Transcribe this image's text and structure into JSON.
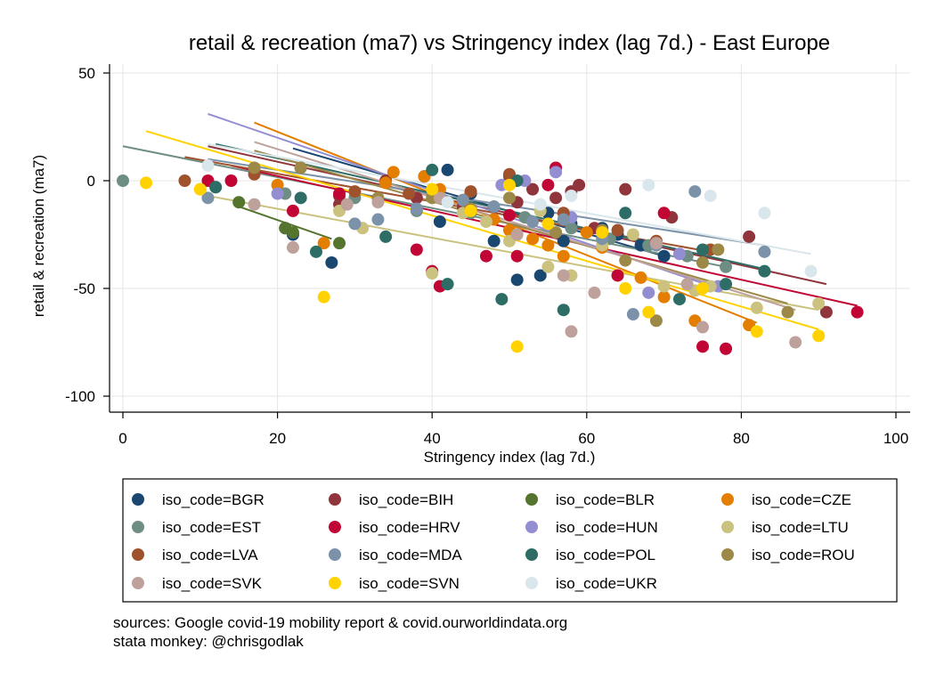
{
  "chart_data": {
    "type": "scatter",
    "title": "retail & recreation (ma7) vs Stringency index (lag 7d.) - East Europe",
    "xlabel": "Stringency index (lag 7d.)",
    "ylabel": "retail & recreation (ma7)",
    "xlim": [
      0,
      100
    ],
    "ylim": [
      -100,
      50
    ],
    "xticks": [
      "0",
      "20",
      "40",
      "60",
      "80",
      "100"
    ],
    "yticks": [
      "50",
      "0",
      "-50",
      "-100"
    ],
    "grid": true,
    "legend_position": "bottom",
    "series": [
      {
        "name": "iso_code=BGR",
        "color": "#1a476f",
        "points": [
          [
            21,
            -22
          ],
          [
            22,
            -25
          ],
          [
            27,
            -38
          ],
          [
            39,
            2
          ],
          [
            41,
            -19
          ],
          [
            42,
            5
          ],
          [
            45,
            -6
          ],
          [
            48,
            -28
          ],
          [
            51,
            -46
          ],
          [
            54,
            -44
          ],
          [
            55,
            -15
          ],
          [
            57,
            -28
          ],
          [
            58,
            -20
          ],
          [
            62,
            -22
          ],
          [
            64,
            -25
          ],
          [
            67,
            -30
          ],
          [
            70,
            -35
          ]
        ],
        "fit": [
          [
            22,
            15
          ],
          [
            70,
            -35
          ]
        ]
      },
      {
        "name": "iso_code=BIH",
        "color": "#90353b",
        "points": [
          [
            28,
            -7
          ],
          [
            28,
            -11
          ],
          [
            34,
            0
          ],
          [
            38,
            -8
          ],
          [
            44,
            -12
          ],
          [
            50,
            2
          ],
          [
            51,
            -10
          ],
          [
            53,
            -4
          ],
          [
            56,
            -8
          ],
          [
            58,
            -5
          ],
          [
            59,
            -2
          ],
          [
            61,
            -22
          ],
          [
            65,
            -4
          ],
          [
            71,
            -17
          ],
          [
            81,
            -26
          ],
          [
            91,
            -61
          ]
        ],
        "fit": [
          [
            11,
            16
          ],
          [
            91,
            -48
          ]
        ]
      },
      {
        "name": "iso_code=BLR",
        "color": "#55752f",
        "points": [
          [
            15,
            -10
          ],
          [
            21,
            -22
          ],
          [
            22,
            -24
          ],
          [
            28,
            -29
          ]
        ],
        "fit": [
          [
            15,
            -12
          ],
          [
            27,
            -27
          ]
        ]
      },
      {
        "name": "iso_code=CZE",
        "color": "#e37e00",
        "points": [
          [
            20,
            -2
          ],
          [
            26,
            -29
          ],
          [
            34,
            -1
          ],
          [
            35,
            4
          ],
          [
            39,
            2
          ],
          [
            41,
            -4
          ],
          [
            44,
            -9
          ],
          [
            48,
            -18
          ],
          [
            50,
            -23
          ],
          [
            53,
            -27
          ],
          [
            55,
            -30
          ],
          [
            57,
            -35
          ],
          [
            60,
            -24
          ],
          [
            62,
            -31
          ],
          [
            67,
            -45
          ],
          [
            70,
            -54
          ],
          [
            74,
            -65
          ],
          [
            81,
            -67
          ]
        ],
        "fit": [
          [
            17,
            27
          ],
          [
            82,
            -66
          ]
        ]
      },
      {
        "name": "iso_code=EST",
        "color": "#6e8e84",
        "points": [
          [
            0,
            0
          ],
          [
            12,
            -3
          ],
          [
            21,
            -6
          ],
          [
            30,
            -8
          ],
          [
            38,
            -14
          ],
          [
            45,
            -15
          ],
          [
            52,
            -17
          ],
          [
            58,
            -22
          ],
          [
            63,
            -27
          ],
          [
            68,
            -30
          ],
          [
            73,
            -35
          ],
          [
            78,
            -40
          ]
        ],
        "fit": [
          [
            0,
            16
          ],
          [
            78,
            -40
          ]
        ]
      },
      {
        "name": "iso_code=HRV",
        "color": "#c10534",
        "points": [
          [
            11,
            0
          ],
          [
            14,
            0
          ],
          [
            22,
            -14
          ],
          [
            28,
            -6
          ],
          [
            38,
            -32
          ],
          [
            40,
            -42
          ],
          [
            41,
            -49
          ],
          [
            47,
            -35
          ],
          [
            50,
            -16
          ],
          [
            51,
            -35
          ],
          [
            55,
            -2
          ],
          [
            56,
            6
          ],
          [
            64,
            -44
          ],
          [
            70,
            -15
          ],
          [
            75,
            -77
          ],
          [
            78,
            -78
          ],
          [
            95,
            -61
          ]
        ],
        "fit": [
          [
            14,
            7
          ],
          [
            95,
            -58
          ]
        ]
      },
      {
        "name": "iso_code=HUN",
        "color": "#938dd2",
        "points": [
          [
            20,
            -6
          ],
          [
            49,
            -2
          ],
          [
            52,
            0
          ],
          [
            56,
            4
          ],
          [
            58,
            -17
          ],
          [
            68,
            -52
          ],
          [
            72,
            -34
          ],
          [
            77,
            -49
          ]
        ],
        "fit": [
          [
            11,
            31
          ],
          [
            77,
            -50
          ]
        ]
      },
      {
        "name": "iso_code=LTU",
        "color": "#cac27e",
        "points": [
          [
            10,
            -4
          ],
          [
            28,
            -14
          ],
          [
            31,
            -22
          ],
          [
            40,
            -43
          ],
          [
            44,
            -15
          ],
          [
            47,
            -19
          ],
          [
            50,
            -28
          ],
          [
            54,
            -14
          ],
          [
            55,
            -40
          ],
          [
            58,
            -44
          ],
          [
            62,
            -30
          ],
          [
            66,
            -25
          ],
          [
            70,
            -49
          ],
          [
            74,
            -51
          ],
          [
            76,
            -49
          ],
          [
            82,
            -59
          ],
          [
            90,
            -57
          ]
        ],
        "fit": [
          [
            11,
            -7
          ],
          [
            90,
            -60
          ]
        ]
      },
      {
        "name": "iso_code=LVA",
        "color": "#a0522d",
        "points": [
          [
            8,
            0
          ],
          [
            17,
            3
          ],
          [
            23,
            6
          ],
          [
            30,
            -5
          ],
          [
            37,
            -6
          ],
          [
            45,
            -5
          ],
          [
            50,
            3
          ],
          [
            57,
            -15
          ],
          [
            64,
            -23
          ],
          [
            69,
            -28
          ],
          [
            76,
            -32
          ]
        ],
        "fit": [
          [
            8,
            11
          ],
          [
            76,
            -33
          ]
        ]
      },
      {
        "name": "iso_code=MDA",
        "color": "#7b92a8",
        "points": [
          [
            11,
            -8
          ],
          [
            30,
            -20
          ],
          [
            33,
            -18
          ],
          [
            38,
            -13
          ],
          [
            44,
            -9
          ],
          [
            48,
            -12
          ],
          [
            53,
            -19
          ],
          [
            57,
            -18
          ],
          [
            62,
            -27
          ],
          [
            66,
            -62
          ],
          [
            69,
            -30
          ],
          [
            74,
            -5
          ],
          [
            83,
            -33
          ]
        ],
        "fit": [
          [
            11,
            10
          ],
          [
            83,
            -30
          ]
        ]
      },
      {
        "name": "iso_code=POL",
        "color": "#2d6d66",
        "points": [
          [
            12,
            -3
          ],
          [
            23,
            -8
          ],
          [
            25,
            -33
          ],
          [
            34,
            -26
          ],
          [
            40,
            5
          ],
          [
            42,
            -48
          ],
          [
            49,
            -55
          ],
          [
            51,
            0
          ],
          [
            57,
            -60
          ],
          [
            65,
            -15
          ],
          [
            72,
            -55
          ],
          [
            75,
            -32
          ],
          [
            78,
            -48
          ],
          [
            83,
            -42
          ]
        ],
        "fit": [
          [
            12,
            17
          ],
          [
            83,
            -41
          ]
        ]
      },
      {
        "name": "iso_code=ROU",
        "color": "#9c8847",
        "points": [
          [
            17,
            6
          ],
          [
            23,
            6
          ],
          [
            33,
            -8
          ],
          [
            40,
            -8
          ],
          [
            45,
            -13
          ],
          [
            50,
            -8
          ],
          [
            56,
            -24
          ],
          [
            62,
            -23
          ],
          [
            65,
            -37
          ],
          [
            69,
            -65
          ],
          [
            75,
            -38
          ],
          [
            77,
            -32
          ],
          [
            86,
            -61
          ]
        ],
        "fit": [
          [
            17,
            14
          ],
          [
            86,
            -57
          ]
        ]
      },
      {
        "name": "iso_code=SVK",
        "color": "#bfa19c",
        "points": [
          [
            17,
            -11
          ],
          [
            22,
            -31
          ],
          [
            29,
            -11
          ],
          [
            33,
            -10
          ],
          [
            41,
            -8
          ],
          [
            51,
            -25
          ],
          [
            57,
            -44
          ],
          [
            58,
            -70
          ],
          [
            61,
            -52
          ],
          [
            69,
            -29
          ],
          [
            73,
            -48
          ],
          [
            75,
            -68
          ],
          [
            87,
            -75
          ]
        ],
        "fit": [
          [
            17,
            18
          ],
          [
            87,
            -60
          ]
        ]
      },
      {
        "name": "iso_code=SVN",
        "color": "#ffd200",
        "points": [
          [
            3,
            -1
          ],
          [
            10,
            -4
          ],
          [
            26,
            -54
          ],
          [
            40,
            -4
          ],
          [
            45,
            -14
          ],
          [
            50,
            -2
          ],
          [
            51,
            -77
          ],
          [
            55,
            -20
          ],
          [
            62,
            -24
          ],
          [
            65,
            -50
          ],
          [
            68,
            -61
          ],
          [
            75,
            -50
          ],
          [
            82,
            -70
          ],
          [
            90,
            -72
          ]
        ],
        "fit": [
          [
            3,
            23
          ],
          [
            90,
            -69
          ]
        ]
      },
      {
        "name": "iso_code=UKR",
        "color": "#d9e6eb",
        "points": [
          [
            11,
            7
          ],
          [
            42,
            -10
          ],
          [
            54,
            -11
          ],
          [
            58,
            -7
          ],
          [
            68,
            -2
          ],
          [
            76,
            -7
          ],
          [
            83,
            -15
          ],
          [
            89,
            -42
          ]
        ],
        "fit": [
          [
            11,
            17
          ],
          [
            89,
            -34
          ]
        ]
      }
    ]
  },
  "caption": {
    "line1": "sources: Google covid-19 mobility report & covid.ourworldindata.org",
    "line2": "stata monkey: @chrisgodlak"
  }
}
